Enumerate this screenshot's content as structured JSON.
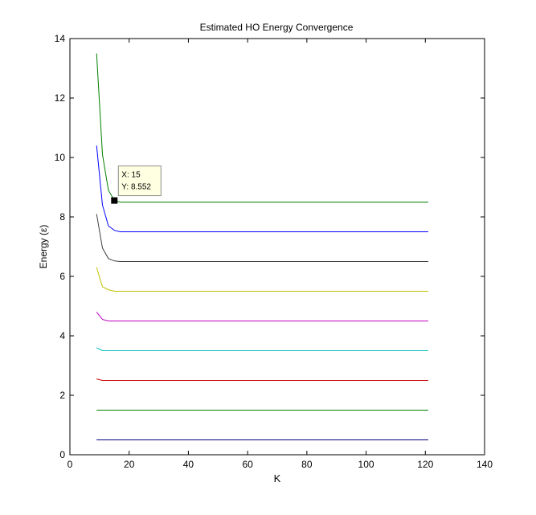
{
  "chart_data": {
    "type": "line",
    "title": "Estimated HO Energy Convergence",
    "xlabel": "K",
    "ylabel": "Energy (ε)",
    "xlim": [
      0,
      140
    ],
    "ylim": [
      0,
      14
    ],
    "xticks": [
      0,
      20,
      40,
      60,
      80,
      100,
      120,
      140
    ],
    "yticks": [
      0,
      2,
      4,
      6,
      8,
      10,
      12,
      14
    ],
    "grid": false,
    "legend": "none",
    "series": [
      {
        "color": "#000080",
        "x": [
          9,
          11,
          13,
          15,
          17,
          121
        ],
        "y": [
          0.5,
          0.5,
          0.5,
          0.5,
          0.5,
          0.5
        ]
      },
      {
        "color": "#008000",
        "x": [
          9,
          11,
          13,
          15,
          17,
          121
        ],
        "y": [
          1.5,
          1.5,
          1.5,
          1.5,
          1.5,
          1.5
        ]
      },
      {
        "color": "#cc0000",
        "x": [
          9,
          11,
          13,
          15,
          17,
          121
        ],
        "y": [
          2.55,
          2.5,
          2.5,
          2.5,
          2.5,
          2.5
        ]
      },
      {
        "color": "#00bfbf",
        "x": [
          9,
          11,
          13,
          15,
          17,
          121
        ],
        "y": [
          3.6,
          3.5,
          3.5,
          3.5,
          3.5,
          3.5
        ]
      },
      {
        "color": "#bf00bf",
        "x": [
          9,
          11,
          13,
          15,
          17,
          121
        ],
        "y": [
          4.8,
          4.55,
          4.5,
          4.5,
          4.5,
          4.5
        ]
      },
      {
        "color": "#bfbf00",
        "x": [
          9,
          11,
          13,
          15,
          17,
          121
        ],
        "y": [
          6.3,
          5.65,
          5.55,
          5.5,
          5.5,
          5.5
        ]
      },
      {
        "color": "#404040",
        "x": [
          9,
          11,
          13,
          15,
          17,
          121
        ],
        "y": [
          8.1,
          6.95,
          6.6,
          6.52,
          6.5,
          6.5
        ]
      },
      {
        "color": "#0000ff",
        "x": [
          9,
          11,
          13,
          15,
          17,
          121
        ],
        "y": [
          10.4,
          8.4,
          7.7,
          7.55,
          7.5,
          7.5
        ]
      },
      {
        "color": "#008000",
        "x": [
          9,
          11,
          13,
          15,
          17,
          121
        ],
        "y": [
          13.5,
          10.1,
          8.9,
          8.552,
          8.5,
          8.5
        ]
      }
    ],
    "datatip": {
      "x_label": "X: 15",
      "y_label": "Y: 8.552",
      "x": 15,
      "y": 8.552
    }
  }
}
